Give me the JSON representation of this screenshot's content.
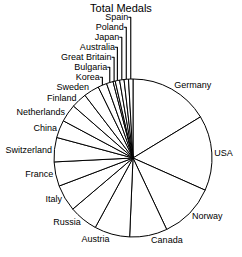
{
  "chart_data": {
    "type": "pie",
    "title": "Total Medals",
    "categories": [
      "Germany",
      "USA",
      "Norway",
      "Canada",
      "Austria",
      "Russia",
      "Italy",
      "France",
      "Switzerland",
      "China",
      "Netherlands",
      "Finland",
      "Sweden",
      "Korea",
      "Bulgaria",
      "Great Britain",
      "Australia",
      "Japan",
      "Poland",
      "Spain"
    ],
    "values": [
      36,
      34,
      25,
      17,
      16,
      13,
      12,
      11,
      11,
      8,
      8,
      7,
      7,
      4,
      3,
      1,
      2,
      2,
      2,
      2
    ],
    "color": "#ffffff"
  }
}
